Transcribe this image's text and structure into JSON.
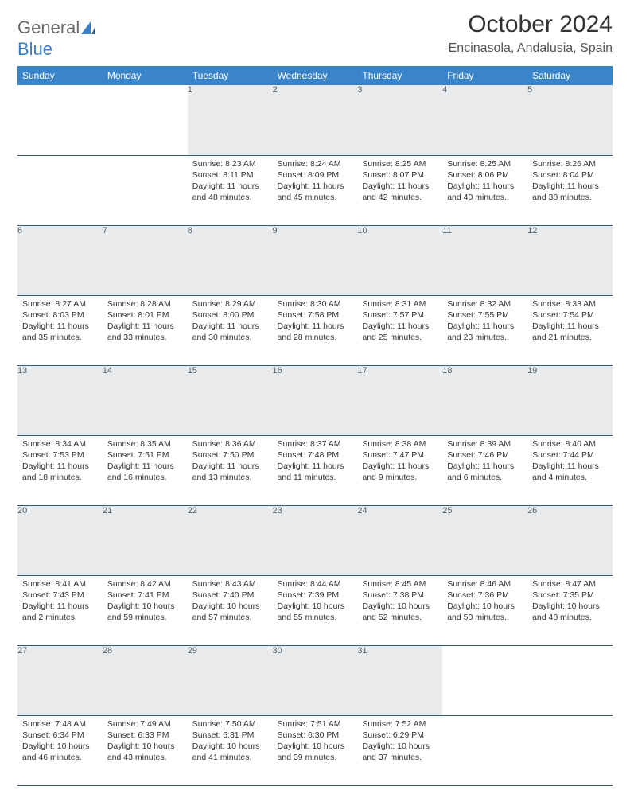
{
  "brand": {
    "part1": "General",
    "part2": "Blue"
  },
  "title": "October 2024",
  "location": "Encinasola, Andalusia, Spain",
  "colors": {
    "header_bg": "#3a85c9",
    "header_text": "#ffffff",
    "daynum_bg": "#e8eaec",
    "daynum_text": "#56606a",
    "cell_text": "#333333",
    "rule": "#2b5f8f",
    "logo_gray": "#6b6b6b",
    "logo_blue": "#3a7fc4"
  },
  "weekdays": [
    "Sunday",
    "Monday",
    "Tuesday",
    "Wednesday",
    "Thursday",
    "Friday",
    "Saturday"
  ],
  "weeks": [
    {
      "nums": [
        "",
        "",
        "1",
        "2",
        "3",
        "4",
        "5"
      ],
      "cells": [
        null,
        null,
        {
          "sunrise": "Sunrise: 8:23 AM",
          "sunset": "Sunset: 8:11 PM",
          "day1": "Daylight: 11 hours",
          "day2": "and 48 minutes."
        },
        {
          "sunrise": "Sunrise: 8:24 AM",
          "sunset": "Sunset: 8:09 PM",
          "day1": "Daylight: 11 hours",
          "day2": "and 45 minutes."
        },
        {
          "sunrise": "Sunrise: 8:25 AM",
          "sunset": "Sunset: 8:07 PM",
          "day1": "Daylight: 11 hours",
          "day2": "and 42 minutes."
        },
        {
          "sunrise": "Sunrise: 8:25 AM",
          "sunset": "Sunset: 8:06 PM",
          "day1": "Daylight: 11 hours",
          "day2": "and 40 minutes."
        },
        {
          "sunrise": "Sunrise: 8:26 AM",
          "sunset": "Sunset: 8:04 PM",
          "day1": "Daylight: 11 hours",
          "day2": "and 38 minutes."
        }
      ]
    },
    {
      "nums": [
        "6",
        "7",
        "8",
        "9",
        "10",
        "11",
        "12"
      ],
      "cells": [
        {
          "sunrise": "Sunrise: 8:27 AM",
          "sunset": "Sunset: 8:03 PM",
          "day1": "Daylight: 11 hours",
          "day2": "and 35 minutes."
        },
        {
          "sunrise": "Sunrise: 8:28 AM",
          "sunset": "Sunset: 8:01 PM",
          "day1": "Daylight: 11 hours",
          "day2": "and 33 minutes."
        },
        {
          "sunrise": "Sunrise: 8:29 AM",
          "sunset": "Sunset: 8:00 PM",
          "day1": "Daylight: 11 hours",
          "day2": "and 30 minutes."
        },
        {
          "sunrise": "Sunrise: 8:30 AM",
          "sunset": "Sunset: 7:58 PM",
          "day1": "Daylight: 11 hours",
          "day2": "and 28 minutes."
        },
        {
          "sunrise": "Sunrise: 8:31 AM",
          "sunset": "Sunset: 7:57 PM",
          "day1": "Daylight: 11 hours",
          "day2": "and 25 minutes."
        },
        {
          "sunrise": "Sunrise: 8:32 AM",
          "sunset": "Sunset: 7:55 PM",
          "day1": "Daylight: 11 hours",
          "day2": "and 23 minutes."
        },
        {
          "sunrise": "Sunrise: 8:33 AM",
          "sunset": "Sunset: 7:54 PM",
          "day1": "Daylight: 11 hours",
          "day2": "and 21 minutes."
        }
      ]
    },
    {
      "nums": [
        "13",
        "14",
        "15",
        "16",
        "17",
        "18",
        "19"
      ],
      "cells": [
        {
          "sunrise": "Sunrise: 8:34 AM",
          "sunset": "Sunset: 7:53 PM",
          "day1": "Daylight: 11 hours",
          "day2": "and 18 minutes."
        },
        {
          "sunrise": "Sunrise: 8:35 AM",
          "sunset": "Sunset: 7:51 PM",
          "day1": "Daylight: 11 hours",
          "day2": "and 16 minutes."
        },
        {
          "sunrise": "Sunrise: 8:36 AM",
          "sunset": "Sunset: 7:50 PM",
          "day1": "Daylight: 11 hours",
          "day2": "and 13 minutes."
        },
        {
          "sunrise": "Sunrise: 8:37 AM",
          "sunset": "Sunset: 7:48 PM",
          "day1": "Daylight: 11 hours",
          "day2": "and 11 minutes."
        },
        {
          "sunrise": "Sunrise: 8:38 AM",
          "sunset": "Sunset: 7:47 PM",
          "day1": "Daylight: 11 hours",
          "day2": "and 9 minutes."
        },
        {
          "sunrise": "Sunrise: 8:39 AM",
          "sunset": "Sunset: 7:46 PM",
          "day1": "Daylight: 11 hours",
          "day2": "and 6 minutes."
        },
        {
          "sunrise": "Sunrise: 8:40 AM",
          "sunset": "Sunset: 7:44 PM",
          "day1": "Daylight: 11 hours",
          "day2": "and 4 minutes."
        }
      ]
    },
    {
      "nums": [
        "20",
        "21",
        "22",
        "23",
        "24",
        "25",
        "26"
      ],
      "cells": [
        {
          "sunrise": "Sunrise: 8:41 AM",
          "sunset": "Sunset: 7:43 PM",
          "day1": "Daylight: 11 hours",
          "day2": "and 2 minutes."
        },
        {
          "sunrise": "Sunrise: 8:42 AM",
          "sunset": "Sunset: 7:41 PM",
          "day1": "Daylight: 10 hours",
          "day2": "and 59 minutes."
        },
        {
          "sunrise": "Sunrise: 8:43 AM",
          "sunset": "Sunset: 7:40 PM",
          "day1": "Daylight: 10 hours",
          "day2": "and 57 minutes."
        },
        {
          "sunrise": "Sunrise: 8:44 AM",
          "sunset": "Sunset: 7:39 PM",
          "day1": "Daylight: 10 hours",
          "day2": "and 55 minutes."
        },
        {
          "sunrise": "Sunrise: 8:45 AM",
          "sunset": "Sunset: 7:38 PM",
          "day1": "Daylight: 10 hours",
          "day2": "and 52 minutes."
        },
        {
          "sunrise": "Sunrise: 8:46 AM",
          "sunset": "Sunset: 7:36 PM",
          "day1": "Daylight: 10 hours",
          "day2": "and 50 minutes."
        },
        {
          "sunrise": "Sunrise: 8:47 AM",
          "sunset": "Sunset: 7:35 PM",
          "day1": "Daylight: 10 hours",
          "day2": "and 48 minutes."
        }
      ]
    },
    {
      "nums": [
        "27",
        "28",
        "29",
        "30",
        "31",
        "",
        ""
      ],
      "cells": [
        {
          "sunrise": "Sunrise: 7:48 AM",
          "sunset": "Sunset: 6:34 PM",
          "day1": "Daylight: 10 hours",
          "day2": "and 46 minutes."
        },
        {
          "sunrise": "Sunrise: 7:49 AM",
          "sunset": "Sunset: 6:33 PM",
          "day1": "Daylight: 10 hours",
          "day2": "and 43 minutes."
        },
        {
          "sunrise": "Sunrise: 7:50 AM",
          "sunset": "Sunset: 6:31 PM",
          "day1": "Daylight: 10 hours",
          "day2": "and 41 minutes."
        },
        {
          "sunrise": "Sunrise: 7:51 AM",
          "sunset": "Sunset: 6:30 PM",
          "day1": "Daylight: 10 hours",
          "day2": "and 39 minutes."
        },
        {
          "sunrise": "Sunrise: 7:52 AM",
          "sunset": "Sunset: 6:29 PM",
          "day1": "Daylight: 10 hours",
          "day2": "and 37 minutes."
        },
        null,
        null
      ]
    }
  ]
}
